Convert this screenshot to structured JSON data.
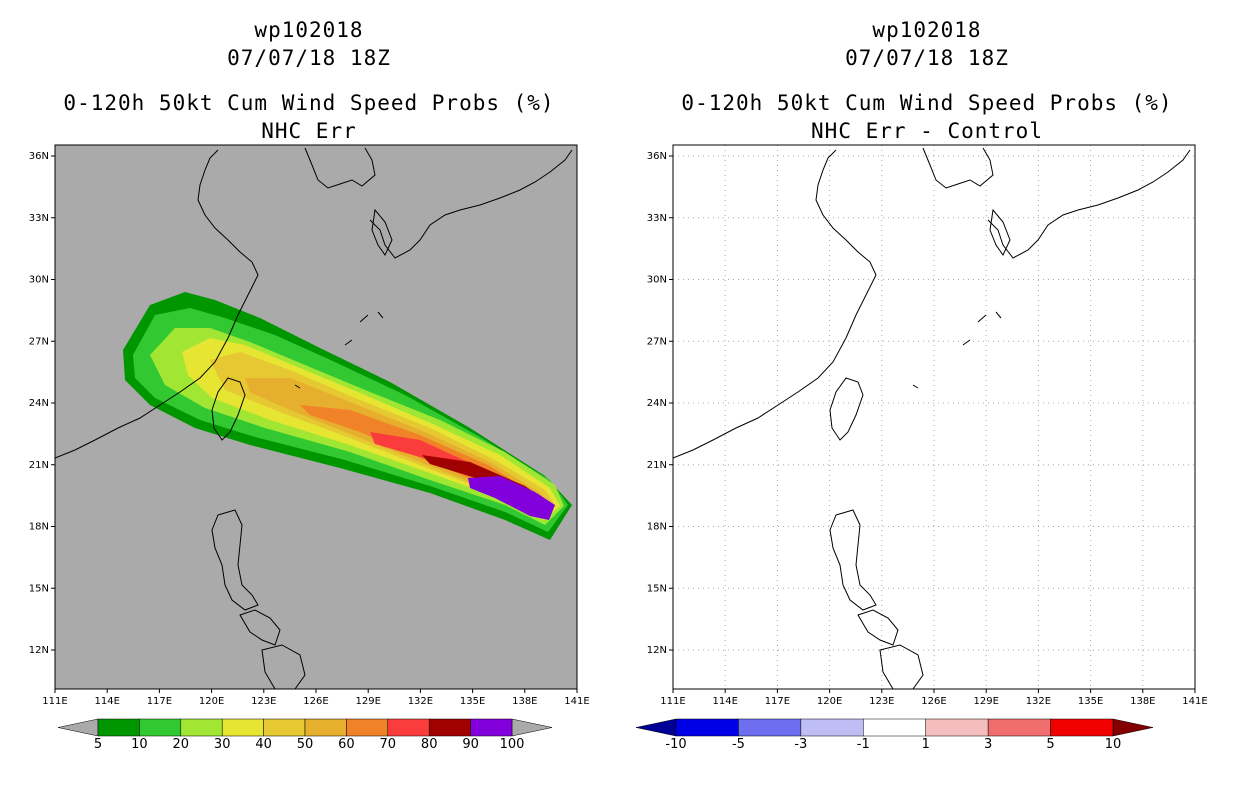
{
  "colors": {
    "background": "#ffffff",
    "left_map_fill": "#aaaaaa",
    "right_map_fill": "#ffffff",
    "grid": "#aaaaaa",
    "coast": "#000000"
  },
  "panels": [
    {
      "id": "left",
      "title_line1": "wp102018",
      "title_line2": "07/07/18 18Z",
      "title_line3": "0-120h 50kt Cum Wind Speed Probs (%)",
      "title_line4": "NHC Err",
      "lat_labels": [
        "36N",
        "33N",
        "30N",
        "27N",
        "24N",
        "21N",
        "18N",
        "15N",
        "12N"
      ],
      "lon_labels": [
        "111E",
        "114E",
        "117E",
        "120E",
        "123E",
        "126E",
        "129E",
        "132E",
        "135E",
        "138E",
        "141E"
      ],
      "colorbar_labels": [
        "5",
        "10",
        "20",
        "30",
        "40",
        "50",
        "60",
        "70",
        "80",
        "90",
        "100"
      ],
      "colorbar_colors": [
        "#009600",
        "#32c832",
        "#a0e632",
        "#e6e632",
        "#e6c832",
        "#e6af2d",
        "#f08228",
        "#fa3c3c",
        "#a00000",
        "#8200dc"
      ],
      "colorbar_end_colors": [
        "#aaaaaa",
        "#aaaaaa"
      ]
    },
    {
      "id": "right",
      "title_line1": "wp102018",
      "title_line2": "07/07/18 18Z",
      "title_line3": "0-120h 50kt Cum Wind Speed Probs (%)",
      "title_line4": "NHC Err - Control",
      "lat_labels": [
        "36N",
        "33N",
        "30N",
        "27N",
        "24N",
        "21N",
        "18N",
        "15N",
        "12N"
      ],
      "lon_labels": [
        "111E",
        "114E",
        "117E",
        "120E",
        "123E",
        "126E",
        "129E",
        "132E",
        "135E",
        "138E",
        "141E"
      ],
      "colorbar_labels": [
        "-10",
        "-5",
        "-3",
        "-1",
        "1",
        "3",
        "5",
        "10"
      ],
      "colorbar_colors": [
        "#0000e6",
        "#6e6ef0",
        "#bebef5",
        "#ffffff",
        "#f5bebe",
        "#f06e6e",
        "#f00000"
      ],
      "colorbar_end_colors": [
        "#000096",
        "#820000"
      ]
    }
  ],
  "probability_bands": [
    {
      "level": 5,
      "color": "#009600"
    },
    {
      "level": 10,
      "color": "#32c832"
    },
    {
      "level": 20,
      "color": "#a0e632"
    },
    {
      "level": 30,
      "color": "#e6e632"
    },
    {
      "level": 40,
      "color": "#e6c832"
    },
    {
      "level": 50,
      "color": "#e6af2d"
    },
    {
      "level": 60,
      "color": "#f08228"
    },
    {
      "level": 70,
      "color": "#fa3c3c"
    },
    {
      "level": 80,
      "color": "#a00000"
    },
    {
      "level": 90,
      "color": "#8200dc"
    }
  ]
}
